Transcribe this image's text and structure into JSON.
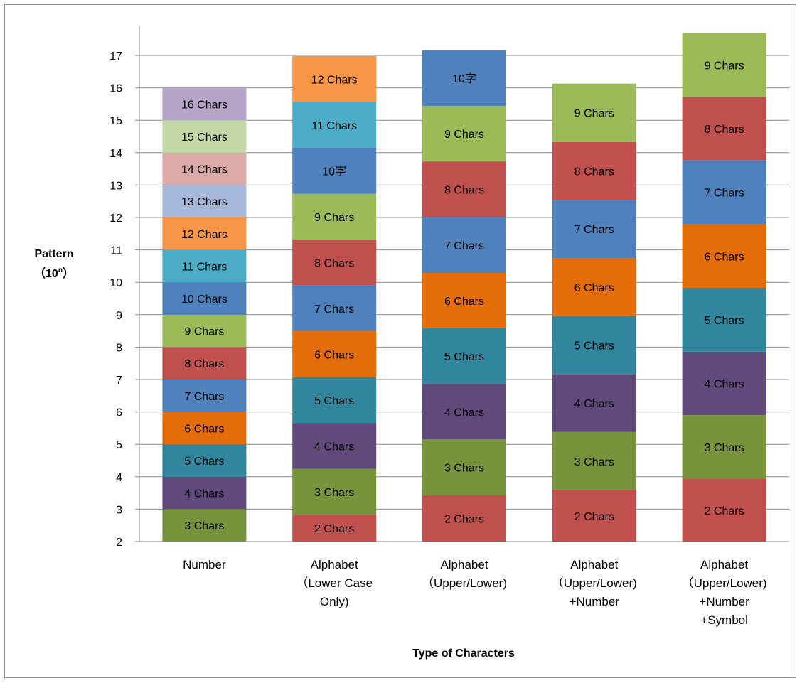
{
  "chart_data": {
    "type": "bar",
    "stacked": true,
    "ylim": [
      2,
      18
    ],
    "yticks": [
      2,
      3,
      4,
      5,
      6,
      7,
      8,
      9,
      10,
      11,
      12,
      13,
      14,
      15,
      16,
      17
    ],
    "grid": true,
    "legend": "none",
    "ylabel_line1": "Pattern",
    "ylabel_base": "（10",
    "ylabel_exp": "n",
    "ylabel_close": "）",
    "xlabel": "Type of Characters",
    "categories": [
      {
        "label_lines": [
          "Number"
        ],
        "segments": [
          {
            "label": "3 Chars",
            "from": 2,
            "to": 3,
            "color": "#77933C"
          },
          {
            "label": "4 Chars",
            "from": 3,
            "to": 4,
            "color": "#604A7B"
          },
          {
            "label": "5 Chars",
            "from": 4,
            "to": 5,
            "color": "#31859C"
          },
          {
            "label": "6 Chars",
            "from": 5,
            "to": 6,
            "color": "#E46C0A"
          },
          {
            "label": "7 Chars",
            "from": 6,
            "to": 7,
            "color": "#4F81BD"
          },
          {
            "label": "8 Chars",
            "from": 7,
            "to": 8,
            "color": "#C0504D"
          },
          {
            "label": "9 Chars",
            "from": 8,
            "to": 9,
            "color": "#9BBB59"
          },
          {
            "label": "10 Chars",
            "from": 9,
            "to": 10,
            "color": "#4F81BD"
          },
          {
            "label": "11 Chars",
            "from": 10,
            "to": 11,
            "color": "#4BACC6"
          },
          {
            "label": "12 Chars",
            "from": 11,
            "to": 12,
            "color": "#F79646"
          },
          {
            "label": "13 Chars",
            "from": 12,
            "to": 13,
            "color": "#A7B9DA"
          },
          {
            "label": "14 Chars",
            "from": 13,
            "to": 14,
            "color": "#DBA9A8"
          },
          {
            "label": "15 Chars",
            "from": 14,
            "to": 15,
            "color": "#C5D9A8"
          },
          {
            "label": "16 Chars",
            "from": 15,
            "to": 16,
            "color": "#B3A6C6"
          }
        ]
      },
      {
        "label_lines": [
          "Alphabet",
          "（Lower Case",
          "Only)"
        ],
        "segments": [
          {
            "label": "2 Chars",
            "from": 2,
            "to": 2.83,
            "color": "#C0504D"
          },
          {
            "label": "3 Chars",
            "from": 2.83,
            "to": 4.24,
            "color": "#77933C"
          },
          {
            "label": "4 Chars",
            "from": 4.24,
            "to": 5.66,
            "color": "#604A7B"
          },
          {
            "label": "5 Chars",
            "from": 5.66,
            "to": 7.07,
            "color": "#31859C"
          },
          {
            "label": "6 Chars",
            "from": 7.07,
            "to": 8.49,
            "color": "#E46C0A"
          },
          {
            "label": "7 Chars",
            "from": 8.49,
            "to": 9.9,
            "color": "#4F81BD"
          },
          {
            "label": "8 Chars",
            "from": 9.9,
            "to": 11.32,
            "color": "#C0504D"
          },
          {
            "label": "9 Chars",
            "from": 11.32,
            "to": 12.73,
            "color": "#9BBB59"
          },
          {
            "label": "10字",
            "from": 12.73,
            "to": 14.15,
            "color": "#4F81BD"
          },
          {
            "label": "11 Chars",
            "from": 14.15,
            "to": 15.56,
            "color": "#4BACC6"
          },
          {
            "label": "12 Chars",
            "from": 15.56,
            "to": 16.98,
            "color": "#F79646"
          }
        ]
      },
      {
        "label_lines": [
          "Alphabet",
          "（Upper/Lower)"
        ],
        "segments": [
          {
            "label": "2 Chars",
            "from": 2,
            "to": 3.43,
            "color": "#C0504D"
          },
          {
            "label": "3 Chars",
            "from": 3.43,
            "to": 5.15,
            "color": "#77933C"
          },
          {
            "label": "4 Chars",
            "from": 5.15,
            "to": 6.86,
            "color": "#604A7B"
          },
          {
            "label": "5 Chars",
            "from": 6.86,
            "to": 8.58,
            "color": "#31859C"
          },
          {
            "label": "6 Chars",
            "from": 8.58,
            "to": 10.29,
            "color": "#E46C0A"
          },
          {
            "label": "7 Chars",
            "from": 10.29,
            "to": 12.01,
            "color": "#4F81BD"
          },
          {
            "label": "8 Chars",
            "from": 12.01,
            "to": 13.73,
            "color": "#C0504D"
          },
          {
            "label": "9 Chars",
            "from": 13.73,
            "to": 15.44,
            "color": "#9BBB59"
          },
          {
            "label": "10字",
            "from": 15.44,
            "to": 17.16,
            "color": "#4F81BD"
          }
        ]
      },
      {
        "label_lines": [
          "Alphabet",
          "（Upper/Lower)",
          "+Number"
        ],
        "segments": [
          {
            "label": "2 Chars",
            "from": 2,
            "to": 3.58,
            "color": "#C0504D"
          },
          {
            "label": "3 Chars",
            "from": 3.58,
            "to": 5.38,
            "color": "#77933C"
          },
          {
            "label": "4 Chars",
            "from": 5.38,
            "to": 7.17,
            "color": "#604A7B"
          },
          {
            "label": "5 Chars",
            "from": 7.17,
            "to": 8.96,
            "color": "#31859C"
          },
          {
            "label": "6 Chars",
            "from": 8.96,
            "to": 10.75,
            "color": "#E46C0A"
          },
          {
            "label": "7 Chars",
            "from": 10.75,
            "to": 12.54,
            "color": "#4F81BD"
          },
          {
            "label": "8 Chars",
            "from": 12.54,
            "to": 14.33,
            "color": "#C0504D"
          },
          {
            "label": "9 Chars",
            "from": 14.33,
            "to": 16.13,
            "color": "#9BBB59"
          }
        ]
      },
      {
        "label_lines": [
          "Alphabet",
          "（Upper/Lower)",
          "+Number",
          "+Symbol"
        ],
        "segments": [
          {
            "label": "2 Chars",
            "from": 2,
            "to": 3.93,
            "color": "#C0504D"
          },
          {
            "label": "3 Chars",
            "from": 3.93,
            "to": 5.9,
            "color": "#77933C"
          },
          {
            "label": "4 Chars",
            "from": 5.9,
            "to": 7.86,
            "color": "#604A7B"
          },
          {
            "label": "5 Chars",
            "from": 7.86,
            "to": 9.83,
            "color": "#31859C"
          },
          {
            "label": "6 Chars",
            "from": 9.83,
            "to": 11.79,
            "color": "#E46C0A"
          },
          {
            "label": "7 Chars",
            "from": 11.79,
            "to": 13.76,
            "color": "#4F81BD"
          },
          {
            "label": "8 Chars",
            "from": 13.76,
            "to": 15.72,
            "color": "#C0504D"
          },
          {
            "label": "9 Chars",
            "from": 15.72,
            "to": 17.69,
            "color": "#9BBB59"
          }
        ]
      }
    ]
  }
}
